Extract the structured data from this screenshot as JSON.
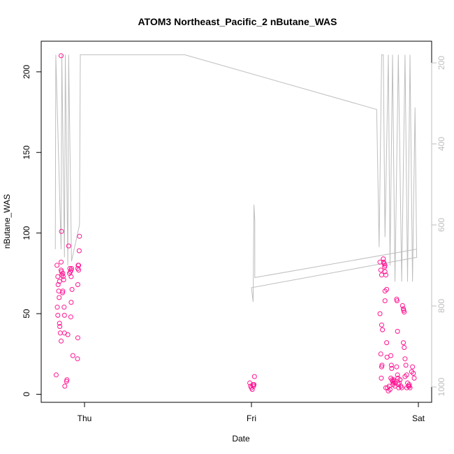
{
  "chart_data": {
    "type": "scatter",
    "title": "ATOM3 Northeast_Pacific_2 nButane_WAS",
    "xlabel": "Date",
    "ylabel": "nButane_WAS",
    "x_ticks": [
      {
        "value": 0,
        "label": "Thu"
      },
      {
        "value": 1,
        "label": "Fri"
      },
      {
        "value": 2,
        "label": "Sat"
      }
    ],
    "y_ticks": [
      0,
      50,
      100,
      150,
      200
    ],
    "ylim": [
      -5,
      219
    ],
    "xlim": [
      -0.2,
      2.09
    ],
    "right_axis": {
      "ticks": [
        200,
        400,
        600,
        800,
        1000
      ],
      "range_top": 194,
      "range_bottom": 1000,
      "reversed": true,
      "color": "#bebebe"
    },
    "points_color": "#ff1493",
    "line_color": "#bebebe",
    "series": [
      {
        "type": "points",
        "points": [
          [
            -0.17,
            12
          ],
          [
            -0.165,
            80
          ],
          [
            -0.16,
            73
          ],
          [
            -0.158,
            68
          ],
          [
            -0.155,
            64
          ],
          [
            -0.163,
            54
          ],
          [
            -0.16,
            49
          ],
          [
            -0.15,
            44
          ],
          [
            -0.148,
            42
          ],
          [
            -0.145,
            38
          ],
          [
            -0.14,
            33
          ],
          [
            -0.152,
            60
          ],
          [
            -0.15,
            70
          ],
          [
            -0.14,
            210
          ],
          [
            -0.138,
            101
          ],
          [
            -0.14,
            82
          ],
          [
            -0.14,
            77
          ],
          [
            -0.138,
            76
          ],
          [
            -0.13,
            75
          ],
          [
            -0.135,
            74
          ],
          [
            -0.128,
            73
          ],
          [
            -0.125,
            71
          ],
          [
            -0.13,
            64
          ],
          [
            -0.132,
            63
          ],
          [
            -0.122,
            54
          ],
          [
            -0.12,
            49
          ],
          [
            -0.12,
            38
          ],
          [
            -0.118,
            5
          ],
          [
            -0.105,
            9
          ],
          [
            -0.108,
            8
          ],
          [
            -0.1,
            37
          ],
          [
            -0.095,
            92
          ],
          [
            -0.09,
            75
          ],
          [
            -0.088,
            78
          ],
          [
            -0.085,
            76
          ],
          [
            -0.08,
            77
          ],
          [
            -0.078,
            78
          ],
          [
            -0.08,
            73
          ],
          [
            -0.075,
            65
          ],
          [
            -0.08,
            57
          ],
          [
            -0.082,
            48
          ],
          [
            -0.07,
            24
          ],
          [
            -0.03,
            98
          ],
          [
            -0.032,
            89
          ],
          [
            -0.035,
            80
          ],
          [
            -0.038,
            80
          ],
          [
            -0.04,
            78
          ],
          [
            -0.035,
            77
          ],
          [
            -0.04,
            68
          ],
          [
            -0.04,
            35
          ],
          [
            -0.042,
            22
          ],
          [
            0.99,
            7
          ],
          [
            0.995,
            5
          ],
          [
            1.0,
            4
          ],
          [
            1.005,
            3
          ],
          [
            1.01,
            6
          ],
          [
            1.012,
            5
          ],
          [
            1.015,
            6
          ],
          [
            1.018,
            11
          ],
          [
            1.77,
            82
          ],
          [
            1.775,
            77
          ],
          [
            1.78,
            74
          ],
          [
            1.77,
            50
          ],
          [
            1.78,
            43
          ],
          [
            1.785,
            40
          ],
          [
            1.775,
            25
          ],
          [
            1.782,
            18
          ],
          [
            1.78,
            17
          ],
          [
            1.778,
            10
          ],
          [
            1.79,
            84
          ],
          [
            1.792,
            82
          ],
          [
            1.795,
            81
          ],
          [
            1.8,
            80
          ],
          [
            1.798,
            79
          ],
          [
            1.8,
            76
          ],
          [
            1.805,
            74
          ],
          [
            1.81,
            65
          ],
          [
            1.8,
            64
          ],
          [
            1.8,
            58
          ],
          [
            1.81,
            32
          ],
          [
            1.812,
            23
          ],
          [
            1.805,
            4
          ],
          [
            1.815,
            4
          ],
          [
            1.82,
            2
          ],
          [
            1.825,
            5
          ],
          [
            1.83,
            3
          ],
          [
            1.835,
            10
          ],
          [
            1.838,
            18
          ],
          [
            1.84,
            16
          ],
          [
            1.842,
            9
          ],
          [
            1.845,
            8
          ],
          [
            1.848,
            6
          ],
          [
            1.85,
            7
          ],
          [
            1.852,
            9
          ],
          [
            1.855,
            8
          ],
          [
            1.86,
            5
          ],
          [
            1.862,
            7
          ],
          [
            1.835,
            24
          ],
          [
            1.87,
            59
          ],
          [
            1.872,
            58
          ],
          [
            1.875,
            39
          ],
          [
            1.87,
            17
          ],
          [
            1.875,
            12
          ],
          [
            1.878,
            10
          ],
          [
            1.88,
            6
          ],
          [
            1.882,
            4
          ],
          [
            1.885,
            7
          ],
          [
            1.89,
            9
          ],
          [
            1.895,
            5
          ],
          [
            1.9,
            4
          ],
          [
            1.89,
            9
          ],
          [
            1.905,
            55
          ],
          [
            1.91,
            53
          ],
          [
            1.912,
            52
          ],
          [
            1.915,
            51
          ],
          [
            1.91,
            32
          ],
          [
            1.915,
            29
          ],
          [
            1.92,
            22
          ],
          [
            1.925,
            18
          ],
          [
            1.92,
            11
          ],
          [
            1.93,
            12
          ],
          [
            1.935,
            7
          ],
          [
            1.94,
            5
          ],
          [
            1.945,
            6
          ],
          [
            1.95,
            4
          ],
          [
            1.96,
            14
          ],
          [
            1.965,
            17
          ],
          [
            1.97,
            13
          ],
          [
            1.975,
            10
          ],
          [
            1.93,
            4
          ],
          [
            1.945,
            5
          ]
        ]
      },
      {
        "type": "line",
        "axis": "right",
        "points": [
          [
            -0.175,
            660
          ],
          [
            -0.172,
            180
          ],
          [
            -0.14,
            660
          ],
          [
            -0.136,
            180
          ],
          [
            -0.12,
            680
          ],
          [
            -0.115,
            180
          ],
          [
            -0.1,
            700
          ],
          [
            -0.095,
            180
          ],
          [
            -0.078,
            690
          ],
          [
            -0.03,
            600
          ],
          [
            -0.025,
            180
          ],
          [
            0.6,
            180
          ],
          [
            1.75,
            315
          ],
          [
            1.765,
            655
          ],
          [
            1.78,
            180
          ],
          [
            1.79,
            180
          ],
          [
            1.8,
            630
          ],
          [
            1.82,
            180
          ],
          [
            1.83,
            700
          ],
          [
            1.845,
            180
          ],
          [
            1.86,
            740
          ],
          [
            1.88,
            180
          ],
          [
            1.9,
            740
          ],
          [
            1.92,
            180
          ],
          [
            1.935,
            740
          ],
          [
            1.95,
            180
          ],
          [
            1.965,
            740
          ],
          [
            1.98,
            310
          ],
          [
            1.99,
            680
          ],
          [
            1.0,
            755
          ],
          [
            1.01,
            790
          ],
          [
            1.015,
            550
          ],
          [
            1.02,
            590
          ],
          [
            1.02,
            730
          ],
          [
            1.99,
            660
          ]
        ]
      }
    ]
  }
}
